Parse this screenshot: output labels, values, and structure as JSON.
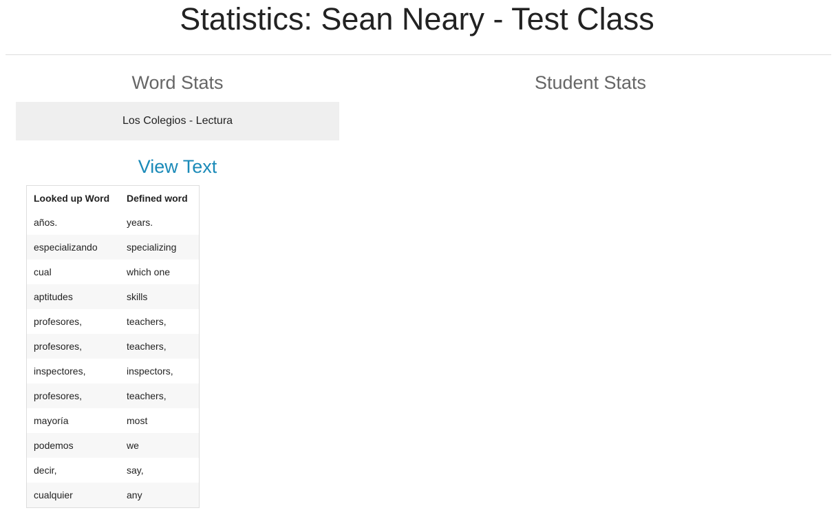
{
  "header": {
    "title": "Statistics: Sean Neary - Test Class"
  },
  "word_stats": {
    "heading": "Word Stats",
    "text_item": "Los Colegios - Lectura",
    "view_text_label": "View Text",
    "table": {
      "columns": [
        "Looked up Word",
        "Defined word"
      ],
      "rows": [
        [
          "años.",
          "years."
        ],
        [
          "especializando",
          "specializing"
        ],
        [
          "cual",
          "which one"
        ],
        [
          "aptitudes",
          "skills"
        ],
        [
          "profesores,",
          "teachers,"
        ],
        [
          "profesores,",
          "teachers,"
        ],
        [
          "inspectores,",
          "inspectors,"
        ],
        [
          "profesores,",
          "teachers,"
        ],
        [
          "mayoría",
          "most"
        ],
        [
          "podemos",
          "we"
        ],
        [
          "decir,",
          "say,"
        ],
        [
          "cualquier",
          "any"
        ]
      ]
    }
  },
  "student_stats": {
    "heading": "Student Stats"
  }
}
